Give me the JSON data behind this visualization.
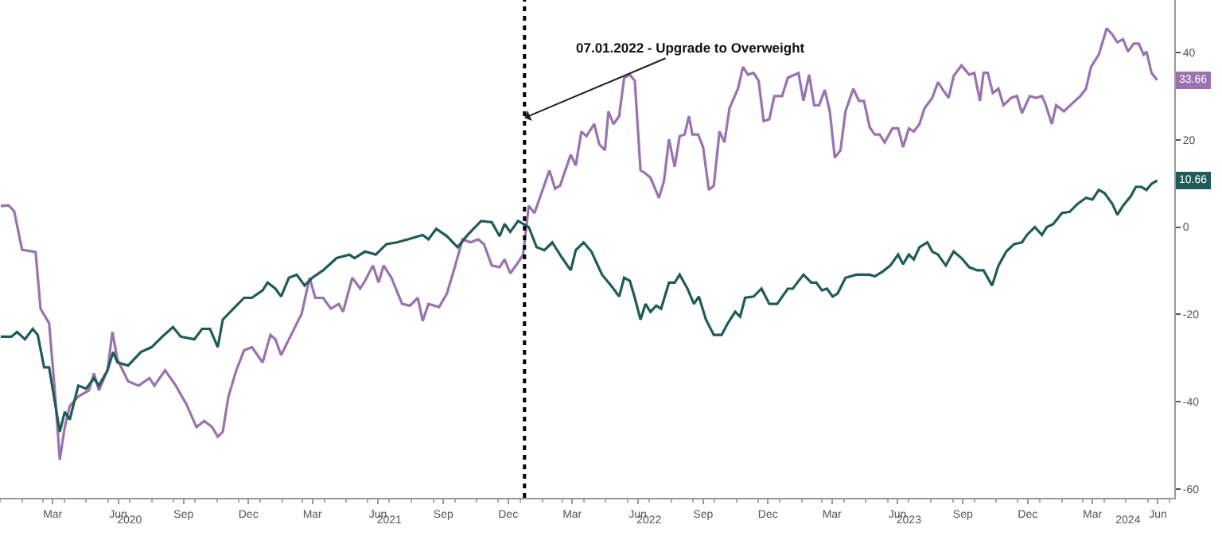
{
  "chart_data": {
    "type": "line",
    "xlim": [
      "2020-01-01",
      "2024-07-08"
    ],
    "ylim": [
      -62,
      52
    ],
    "xticks": [
      {
        "value": "2020-03-15",
        "label": "Mar"
      },
      {
        "value": "2020-06-15",
        "label": "Jun"
      },
      {
        "value": "2020-09-15",
        "label": "Sep"
      },
      {
        "value": "2020-12-15",
        "label": "Dec"
      },
      {
        "value": "2021-03-15",
        "label": "Mar"
      },
      {
        "value": "2021-06-15",
        "label": "Jun"
      },
      {
        "value": "2021-09-15",
        "label": "Sep"
      },
      {
        "value": "2021-12-15",
        "label": "Dec"
      },
      {
        "value": "2022-03-15",
        "label": "Mar"
      },
      {
        "value": "2022-06-15",
        "label": "Jun"
      },
      {
        "value": "2022-09-15",
        "label": "Sep"
      },
      {
        "value": "2022-12-15",
        "label": "Dec"
      },
      {
        "value": "2023-03-15",
        "label": "Mar"
      },
      {
        "value": "2023-06-15",
        "label": "Jun"
      },
      {
        "value": "2023-09-15",
        "label": "Sep"
      },
      {
        "value": "2023-12-15",
        "label": "Dec"
      },
      {
        "value": "2024-03-15",
        "label": "Mar"
      },
      {
        "value": "2024-06-15",
        "label": "Jun"
      }
    ],
    "x2lim": [
      "2020-01-01",
      "2024-07-08"
    ],
    "x2ticks": [
      {
        "value": "2020-07-01",
        "label": "2020"
      },
      {
        "value": "2021-07-01",
        "label": "2021"
      },
      {
        "value": "2022-07-01",
        "label": "2022"
      },
      {
        "value": "2023-07-01",
        "label": "2023"
      },
      {
        "value": "2024-05-04",
        "label": "2024"
      }
    ],
    "yticks": [
      -60,
      -40,
      -20,
      0,
      20,
      40
    ],
    "grid": false,
    "marker": "none",
    "line_style": "solid",
    "ref_lines": [
      {
        "axis": "x",
        "value": "2022-01-07",
        "color": "#000000",
        "line_style": "dotted"
      }
    ],
    "annotations": [
      {
        "text": "07.01.2022 - Upgrade to Overweight",
        "x": "2022-01-07",
        "y": 25
      },
      {
        "text": "33.66",
        "x": "2024-06-14",
        "y": 33.66
      },
      {
        "text": "10.66",
        "x": "2024-06-14",
        "y": 10.66
      }
    ],
    "series": [
      {
        "color": "#9b72b0",
        "x": [
          "2020-01-02",
          "2020-01-13",
          "2020-01-21",
          "2020-02-01",
          "2020-02-20",
          "2020-02-27",
          "2020-03-10",
          "2020-03-18",
          "2020-03-25",
          "2020-04-01",
          "2020-04-08",
          "2020-04-20",
          "2020-05-05",
          "2020-05-12",
          "2020-05-19",
          "2020-05-31",
          "2020-06-07",
          "2020-06-14",
          "2020-06-29",
          "2020-07-14",
          "2020-07-29",
          "2020-08-05",
          "2020-08-20",
          "2020-09-04",
          "2020-09-19",
          "2020-10-03",
          "2020-10-14",
          "2020-10-25",
          "2020-11-02",
          "2020-11-09",
          "2020-11-17",
          "2020-11-28",
          "2020-12-09",
          "2020-12-20",
          "2021-01-04",
          "2021-01-15",
          "2021-01-22",
          "2021-01-30",
          "2021-02-10",
          "2021-02-28",
          "2021-03-11",
          "2021-03-19",
          "2021-03-30",
          "2021-04-10",
          "2021-04-21",
          "2021-04-27",
          "2021-05-10",
          "2021-05-21",
          "2021-05-28",
          "2021-06-08",
          "2021-06-16",
          "2021-06-23",
          "2021-07-04",
          "2021-07-19",
          "2021-07-30",
          "2021-08-10",
          "2021-08-17",
          "2021-08-25",
          "2021-09-09",
          "2021-09-20",
          "2021-10-01",
          "2021-10-12",
          "2021-10-23",
          "2021-11-03",
          "2021-11-11",
          "2021-11-22",
          "2021-12-03",
          "2021-12-10",
          "2021-12-18",
          "2021-12-29",
          "2022-01-05",
          "2022-01-13",
          "2022-01-21",
          "2022-02-11",
          "2022-02-19",
          "2022-02-26",
          "2022-03-13",
          "2022-03-20",
          "2022-03-28",
          "2022-04-04",
          "2022-04-15",
          "2022-04-22",
          "2022-04-30",
          "2022-05-05",
          "2022-05-12",
          "2022-05-20",
          "2022-05-27",
          "2022-06-04",
          "2022-06-11",
          "2022-06-19",
          "2022-06-26",
          "2022-07-03",
          "2022-07-15",
          "2022-07-22",
          "2022-07-29",
          "2022-08-06",
          "2022-08-13",
          "2022-08-20",
          "2022-08-26",
          "2022-08-31",
          "2022-09-08",
          "2022-09-15",
          "2022-09-23",
          "2022-09-30",
          "2022-10-08",
          "2022-10-15",
          "2022-10-22",
          "2022-11-03",
          "2022-11-10",
          "2022-11-17",
          "2022-11-25",
          "2022-12-02",
          "2022-12-09",
          "2022-12-17",
          "2022-12-24",
          "2023-01-04",
          "2023-01-12",
          "2023-01-27",
          "2023-02-03",
          "2023-02-11",
          "2023-02-18",
          "2023-02-25",
          "2023-03-05",
          "2023-03-12",
          "2023-03-19",
          "2023-03-27",
          "2023-04-03",
          "2023-04-14",
          "2023-04-22",
          "2023-04-29",
          "2023-05-07",
          "2023-05-14",
          "2023-05-21",
          "2023-05-28",
          "2023-06-08",
          "2023-06-16",
          "2023-06-23",
          "2023-07-01",
          "2023-07-08",
          "2023-07-16",
          "2023-07-23",
          "2023-08-03",
          "2023-08-11",
          "2023-08-18",
          "2023-08-26",
          "2023-09-02",
          "2023-09-13",
          "2023-09-24",
          "2023-10-01",
          "2023-10-09",
          "2023-10-14",
          "2023-10-20",
          "2023-10-27",
          "2023-11-04",
          "2023-11-11",
          "2023-11-22",
          "2023-11-30",
          "2023-12-07",
          "2023-12-18",
          "2023-12-27",
          "2024-01-04",
          "2024-01-09",
          "2024-01-18",
          "2024-01-24",
          "2024-02-04",
          "2024-02-15",
          "2024-02-27",
          "2024-03-06",
          "2024-03-13",
          "2024-03-24",
          "2024-04-04",
          "2024-04-12",
          "2024-04-19",
          "2024-04-27",
          "2024-05-04",
          "2024-05-12",
          "2024-05-19",
          "2024-05-26",
          "2024-05-30",
          "2024-06-06",
          "2024-06-14"
        ],
        "values": [
          4.8,
          5,
          3.6,
          -5.2,
          -5.7,
          -18.7,
          -22,
          -37.4,
          -53.3,
          -45.8,
          -41,
          -38.8,
          -37.4,
          -33.5,
          -37.4,
          -32.8,
          -24,
          -30.3,
          -35.3,
          -36.3,
          -34.6,
          -36.3,
          -32.8,
          -36.3,
          -40.6,
          -45.8,
          -44.4,
          -45.8,
          -48,
          -46.9,
          -38.8,
          -32.8,
          -28.2,
          -27.5,
          -31,
          -24.7,
          -25.7,
          -29.3,
          -25.7,
          -19.8,
          -11.6,
          -16.2,
          -16.2,
          -18.7,
          -17.6,
          -19.4,
          -11.6,
          -14.1,
          -12.3,
          -8.8,
          -12.7,
          -8.8,
          -11.6,
          -17.6,
          -18,
          -16.2,
          -21.5,
          -17.6,
          -18.3,
          -15.2,
          -9.2,
          -2.8,
          -3.5,
          -2.8,
          -3.9,
          -8.8,
          -9.2,
          -7.4,
          -10.6,
          -8.1,
          -6.3,
          4.9,
          3.2,
          13,
          8.8,
          9.5,
          16.6,
          14.1,
          21.9,
          20.8,
          23.6,
          19,
          17.6,
          26.5,
          23.6,
          25.4,
          34.2,
          34.9,
          33.5,
          13,
          12.3,
          11.3,
          6.7,
          10.6,
          20.1,
          13.8,
          20.8,
          21.2,
          25.4,
          21.2,
          21.2,
          18.3,
          8.5,
          9.5,
          21.9,
          19.4,
          27.2,
          31.7,
          36.7,
          34.9,
          35.3,
          33.5,
          24.3,
          24.7,
          30,
          30,
          34.2,
          35.3,
          28.9,
          34.9,
          27.9,
          27.9,
          31.4,
          26.5,
          15.9,
          17.6,
          26.5,
          31.7,
          28.9,
          28.9,
          22.9,
          21.2,
          21.2,
          19.4,
          22.6,
          22.6,
          18.3,
          22.6,
          21.9,
          23.6,
          27.2,
          29.6,
          33.2,
          31.4,
          29.6,
          34.6,
          37,
          34.9,
          35.3,
          28.9,
          35.3,
          35.3,
          30.7,
          31.7,
          27.9,
          29.6,
          30,
          26.1,
          30,
          29.6,
          30,
          28.2,
          23.6,
          27.9,
          26.5,
          28.2,
          30,
          31.7,
          36.7,
          39.5,
          45.5,
          44.1,
          42.3,
          43,
          40.2,
          42,
          42,
          39.5,
          40.2,
          35.3,
          33.66
        ]
      },
      {
        "color": "#1f5c57",
        "x": [
          "2020-01-02",
          "2020-01-17",
          "2020-01-25",
          "2020-02-05",
          "2020-02-16",
          "2020-02-23",
          "2020-03-03",
          "2020-03-10",
          "2020-03-25",
          "2020-04-01",
          "2020-04-08",
          "2020-04-20",
          "2020-05-01",
          "2020-05-12",
          "2020-05-19",
          "2020-05-31",
          "2020-06-08",
          "2020-06-14",
          "2020-06-29",
          "2020-07-17",
          "2020-08-01",
          "2020-08-16",
          "2020-08-31",
          "2020-09-11",
          "2020-09-30",
          "2020-10-11",
          "2020-10-22",
          "2020-11-02",
          "2020-11-09",
          "2020-11-24",
          "2020-12-09",
          "2020-12-20",
          "2021-01-04",
          "2021-01-11",
          "2021-01-22",
          "2021-01-30",
          "2021-02-10",
          "2021-02-21",
          "2021-03-04",
          "2021-03-15",
          "2021-03-30",
          "2021-04-18",
          "2021-05-06",
          "2021-05-13",
          "2021-05-28",
          "2021-06-12",
          "2021-06-27",
          "2021-07-12",
          "2021-07-27",
          "2021-08-17",
          "2021-08-25",
          "2021-09-05",
          "2021-09-20",
          "2021-10-05",
          "2021-10-19",
          "2021-11-07",
          "2021-11-22",
          "2021-12-03",
          "2021-12-10",
          "2021-12-18",
          "2021-12-29",
          "2022-01-13",
          "2022-01-24",
          "2022-02-04",
          "2022-02-15",
          "2022-03-01",
          "2022-03-13",
          "2022-03-20",
          "2022-03-31",
          "2022-04-11",
          "2022-04-26",
          "2022-05-05",
          "2022-05-12",
          "2022-05-20",
          "2022-05-27",
          "2022-06-04",
          "2022-06-11",
          "2022-06-19",
          "2022-06-26",
          "2022-07-03",
          "2022-07-11",
          "2022-07-18",
          "2022-07-29",
          "2022-08-06",
          "2022-08-13",
          "2022-08-24",
          "2022-09-02",
          "2022-09-09",
          "2022-09-19",
          "2022-09-30",
          "2022-10-11",
          "2022-10-19",
          "2022-10-30",
          "2022-11-06",
          "2022-11-13",
          "2022-11-25",
          "2022-12-06",
          "2022-12-17",
          "2022-12-28",
          "2023-01-12",
          "2023-01-19",
          "2023-02-03",
          "2023-02-14",
          "2023-02-21",
          "2023-03-01",
          "2023-03-08",
          "2023-03-16",
          "2023-03-23",
          "2023-04-03",
          "2023-04-18",
          "2023-05-07",
          "2023-05-14",
          "2023-05-25",
          "2023-06-05",
          "2023-06-16",
          "2023-06-23",
          "2023-07-01",
          "2023-07-08",
          "2023-07-16",
          "2023-07-27",
          "2023-08-03",
          "2023-08-11",
          "2023-08-22",
          "2023-09-02",
          "2023-09-13",
          "2023-09-24",
          "2023-10-05",
          "2023-10-14",
          "2023-10-26",
          "2023-11-04",
          "2023-11-15",
          "2023-11-26",
          "2023-12-07",
          "2023-12-14",
          "2023-12-25",
          "2024-01-04",
          "2024-01-11",
          "2024-01-20",
          "2024-02-01",
          "2024-02-12",
          "2024-02-23",
          "2024-03-06",
          "2024-03-15",
          "2024-03-24",
          "2024-04-01",
          "2024-04-12",
          "2024-04-19",
          "2024-04-27",
          "2024-05-08",
          "2024-05-15",
          "2024-05-23",
          "2024-05-30",
          "2024-06-06",
          "2024-06-14"
        ],
        "values": [
          -25.1,
          -25.1,
          -24,
          -25.7,
          -23.3,
          -24.7,
          -32.1,
          -32.1,
          -46.9,
          -42.3,
          -44.1,
          -36.3,
          -37,
          -34.6,
          -36.3,
          -32.8,
          -28.6,
          -31,
          -31.7,
          -28.6,
          -27.5,
          -25.1,
          -22.9,
          -25.1,
          -25.7,
          -23.3,
          -23.3,
          -27.5,
          -21.2,
          -18.7,
          -16.2,
          -16.2,
          -14.5,
          -12.7,
          -14.1,
          -15.9,
          -11.6,
          -10.9,
          -13.4,
          -11.6,
          -9.9,
          -7.1,
          -6.3,
          -7.1,
          -5.6,
          -6.3,
          -3.9,
          -3.5,
          -2.8,
          -1.8,
          -2.8,
          -0.4,
          -2.1,
          -4.6,
          -1.8,
          1.4,
          1.1,
          -2.1,
          0.7,
          -1.1,
          1.4,
          0,
          -4.6,
          -5.3,
          -3.5,
          -7.1,
          -9.9,
          -5.3,
          -3.5,
          -5.6,
          -10.9,
          -12.7,
          -14.1,
          -15.9,
          -11.6,
          -12.3,
          -16.2,
          -21.2,
          -17.6,
          -19.4,
          -18,
          -18.7,
          -12.7,
          -12.7,
          -10.9,
          -14.1,
          -17.6,
          -15.9,
          -21.2,
          -24.7,
          -24.7,
          -22.2,
          -19.4,
          -20.5,
          -16.2,
          -15.9,
          -14.1,
          -17.6,
          -17.6,
          -14.1,
          -14.1,
          -10.9,
          -12.7,
          -12.7,
          -14.5,
          -14.1,
          -15.9,
          -15.2,
          -11.6,
          -10.9,
          -10.9,
          -11.3,
          -10.2,
          -8.8,
          -6.3,
          -8.5,
          -6.3,
          -7.4,
          -4.6,
          -3.5,
          -5.6,
          -6.3,
          -8.8,
          -5.6,
          -7.1,
          -9.2,
          -9.9,
          -9.9,
          -13.4,
          -8.8,
          -5.6,
          -3.9,
          -3.5,
          -1.8,
          0,
          -1.8,
          0,
          0.7,
          3.2,
          3.5,
          5.3,
          6.7,
          6.3,
          8.5,
          7.8,
          5.3,
          2.8,
          4.9,
          7.1,
          9.2,
          9.2,
          8.5,
          9.9,
          10.66
        ]
      }
    ]
  }
}
